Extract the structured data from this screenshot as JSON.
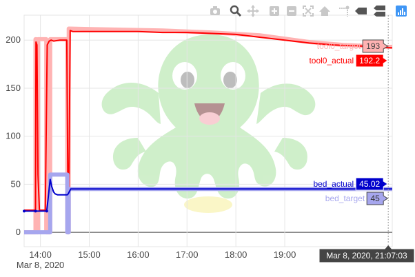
{
  "modebar": {
    "buttons": [
      "camera-icon",
      "zoom-icon",
      "pan-icon",
      "zoom-in-icon",
      "zoom-out-icon",
      "autoscale-icon",
      "reset-axes-icon",
      "spike-lines-icon",
      "hover-closest-icon",
      "hover-compare-icon",
      "plotly-logo-icon"
    ]
  },
  "colors": {
    "tool_actual": "#ff0000",
    "tool_target": "#ffb3b3",
    "bed_actual": "#0000cc",
    "bed_target": "#a6a6ee",
    "grid": "#e5e5e5"
  },
  "hover": {
    "time_label": "Mar 8, 2020, 21:07:03",
    "tool0_target": {
      "name": "tool0_target",
      "value": "193"
    },
    "tool0_actual": {
      "name": "tool0_actual",
      "value": "192.2"
    },
    "bed_actual": {
      "name": "bed_actual",
      "value": "45.02"
    },
    "bed_target": {
      "name": "bed_target",
      "value": "45"
    }
  },
  "chart_data": {
    "type": "line",
    "title": "",
    "xlabel": "",
    "ylabel": "",
    "x_axis": {
      "range_hours": [
        13.667,
        21.2
      ],
      "ticks": [
        {
          "value": 14,
          "label": "14:00",
          "sublabel": "Mar 8, 2020"
        },
        {
          "value": 15,
          "label": "15:00"
        },
        {
          "value": 16,
          "label": "16:00"
        },
        {
          "value": 17,
          "label": "17:00"
        },
        {
          "value": 18,
          "label": "18:00"
        },
        {
          "value": 19,
          "label": "19:00"
        }
      ]
    },
    "y_axis": {
      "range": [
        -15,
        226
      ],
      "ticks": [
        0,
        50,
        100,
        150,
        200
      ]
    },
    "grid": true,
    "series": [
      {
        "name": "tool0_target",
        "color": "#ffb3b3",
        "x": [
          13.667,
          13.9,
          13.9,
          13.92,
          13.92,
          13.95,
          13.95,
          14.12,
          14.12,
          14.2,
          14.2,
          14.55,
          14.55,
          14.58,
          14.58,
          15.5,
          16.5,
          17.5,
          18.5,
          19.5,
          20.2,
          20.6,
          21.11,
          21.2
        ],
        "y": [
          0,
          0,
          201,
          201,
          0,
          0,
          201,
          201,
          0,
          0,
          201,
          201,
          0,
          0,
          212,
          211,
          210,
          208,
          205,
          198,
          195,
          194,
          193,
          193
        ]
      },
      {
        "name": "tool0_actual",
        "color": "#ff0000",
        "x": [
          13.667,
          13.9,
          13.91,
          13.93,
          13.95,
          13.98,
          14.1,
          14.14,
          14.18,
          14.22,
          14.27,
          14.4,
          14.54,
          14.56,
          14.58,
          14.61,
          14.66,
          15.0,
          15.5,
          16.0,
          16.5,
          17.0,
          17.5,
          18.0,
          18.5,
          19.0,
          19.5,
          20.0,
          20.5,
          21.0,
          21.11,
          21.2
        ],
        "y": [
          23,
          23,
          198,
          195,
          60,
          23,
          23,
          195,
          199,
          200,
          199,
          200,
          200,
          60,
          25,
          210,
          209,
          209,
          209,
          209,
          208,
          208,
          207,
          206,
          203,
          200,
          197,
          195,
          194,
          193,
          192.2,
          192
        ]
      },
      {
        "name": "bed_target",
        "color": "#a6a6ee",
        "x": [
          13.667,
          13.9,
          13.9,
          14.12,
          14.12,
          14.2,
          14.2,
          14.55,
          14.55,
          14.58,
          14.58,
          21.2
        ],
        "y": [
          0,
          0,
          0,
          0,
          0,
          0,
          60,
          60,
          0,
          0,
          45,
          45
        ]
      },
      {
        "name": "bed_actual",
        "color": "#0000cc",
        "x": [
          13.667,
          13.9,
          14.13,
          14.2,
          14.23,
          14.27,
          14.3,
          14.35,
          14.55,
          14.57,
          14.59,
          14.62,
          14.7,
          15.0,
          16.0,
          17.0,
          18.0,
          19.0,
          20.0,
          21.0,
          21.11,
          21.2
        ],
        "y": [
          22,
          22,
          22,
          55,
          48,
          42,
          40,
          39,
          39,
          40,
          42,
          45,
          45,
          45.1,
          45,
          45,
          45,
          45.1,
          45,
          45.02,
          45.02,
          45
        ]
      }
    ],
    "hover_x": 21.118
  }
}
